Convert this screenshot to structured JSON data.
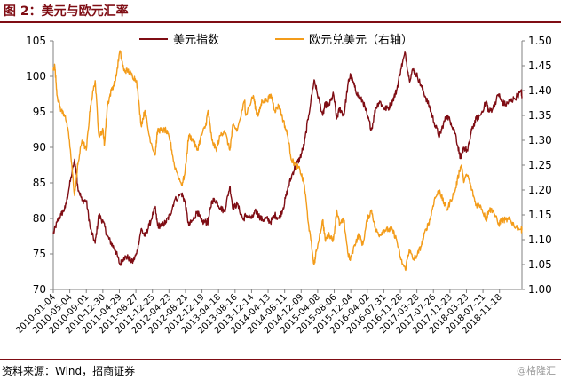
{
  "header": {
    "title": "图 2：美元与欧元汇率"
  },
  "footer": {
    "source": "资料来源：Wind，招商证券",
    "watermark": "@格隆汇"
  },
  "colors": {
    "title": "#7f0d14",
    "usd_index": "#7f0d14",
    "eurusd": "#f39c1a",
    "axis": "#808080"
  },
  "chart_data": {
    "type": "line",
    "title": "",
    "legend_position": "top",
    "grid": false,
    "y_left": {
      "ylim": [
        70,
        105
      ],
      "ticks": [
        "70",
        "75",
        "80",
        "85",
        "90",
        "95",
        "100",
        "105"
      ]
    },
    "y_right": {
      "ylim": [
        1.0,
        1.5
      ],
      "ticks": [
        "1.00",
        "1.05",
        "1.10",
        "1.15",
        "1.20",
        "1.25",
        "1.30",
        "1.35",
        "1.40",
        "1.45",
        "1.50"
      ]
    },
    "x_range": [
      "2010-01-04",
      "2019-04-30"
    ],
    "x_ticks": [
      "2010-01-04",
      "2010-05-04",
      "2010-09-01",
      "2010-12-30",
      "2011-04-29",
      "2011-08-27",
      "2011-12-25",
      "2012-04-23",
      "2012-08-21",
      "2012-12-19",
      "2013-04-18",
      "2013-08-16",
      "2013-12-14",
      "2014-04-13",
      "2014-08-11",
      "2014-12-09",
      "2015-04-08",
      "2015-08-06",
      "2015-12-04",
      "2016-04-02",
      "2016-07-31",
      "2016-11-28",
      "2017-03-28",
      "2017-07-26",
      "2017-11-23",
      "2018-03-23",
      "2018-07-21",
      "2018-11-18"
    ],
    "series": [
      {
        "name": "美元指数",
        "axis": "left",
        "color": "#7f0d14",
        "points": [
          [
            "2010-01-04",
            77.8
          ],
          [
            "2010-02-01",
            79.5
          ],
          [
            "2010-03-01",
            80.5
          ],
          [
            "2010-04-01",
            81.5
          ],
          [
            "2010-05-01",
            84.5
          ],
          [
            "2010-06-07",
            88.2
          ],
          [
            "2010-06-20",
            86.5
          ],
          [
            "2010-07-01",
            84.5
          ],
          [
            "2010-08-01",
            82.5
          ],
          [
            "2010-09-01",
            82.5
          ],
          [
            "2010-10-01",
            78.5
          ],
          [
            "2010-11-04",
            76.5
          ],
          [
            "2010-12-01",
            80.5
          ],
          [
            "2011-01-01",
            79.5
          ],
          [
            "2011-02-01",
            77.5
          ],
          [
            "2011-03-01",
            76.5
          ],
          [
            "2011-04-01",
            75.5
          ],
          [
            "2011-05-03",
            73.5
          ],
          [
            "2011-06-01",
            74.5
          ],
          [
            "2011-07-01",
            74.5
          ],
          [
            "2011-08-01",
            73.8
          ],
          [
            "2011-09-01",
            75.0
          ],
          [
            "2011-10-04",
            78.5
          ],
          [
            "2011-11-01",
            77.5
          ],
          [
            "2011-12-01",
            79.0
          ],
          [
            "2012-01-13",
            81.5
          ],
          [
            "2012-02-01",
            79.0
          ],
          [
            "2012-03-01",
            79.0
          ],
          [
            "2012-04-01",
            79.5
          ],
          [
            "2012-05-01",
            80.5
          ],
          [
            "2012-06-01",
            82.5
          ],
          [
            "2012-07-24",
            83.5
          ],
          [
            "2012-08-15",
            82.5
          ],
          [
            "2012-09-14",
            79.0
          ],
          [
            "2012-10-15",
            79.8
          ],
          [
            "2012-11-15",
            81.0
          ],
          [
            "2012-12-15",
            79.5
          ],
          [
            "2013-01-15",
            79.5
          ],
          [
            "2013-02-01",
            79.5
          ],
          [
            "2013-03-01",
            82.5
          ],
          [
            "2013-04-01",
            82.5
          ],
          [
            "2013-05-01",
            81.5
          ],
          [
            "2013-06-01",
            81.0
          ],
          [
            "2013-07-09",
            84.5
          ],
          [
            "2013-08-01",
            81.5
          ],
          [
            "2013-09-01",
            82.0
          ],
          [
            "2013-10-15",
            79.8
          ],
          [
            "2013-11-01",
            80.5
          ],
          [
            "2013-12-15",
            80.0
          ],
          [
            "2014-01-15",
            81.0
          ],
          [
            "2014-02-01",
            80.5
          ],
          [
            "2014-03-01",
            79.8
          ],
          [
            "2014-04-01",
            80.0
          ],
          [
            "2014-05-01",
            79.5
          ],
          [
            "2014-06-01",
            80.5
          ],
          [
            "2014-07-01",
            80.0
          ],
          [
            "2014-08-01",
            81.5
          ],
          [
            "2014-09-01",
            84.0
          ],
          [
            "2014-10-01",
            86.0
          ],
          [
            "2014-11-01",
            87.5
          ],
          [
            "2014-12-01",
            88.5
          ],
          [
            "2015-01-01",
            90.5
          ],
          [
            "2015-02-01",
            94.5
          ],
          [
            "2015-03-13",
            99.5
          ],
          [
            "2015-04-01",
            98.0
          ],
          [
            "2015-05-15",
            94.5
          ],
          [
            "2015-06-01",
            96.0
          ],
          [
            "2015-07-01",
            96.0
          ],
          [
            "2015-08-01",
            97.5
          ],
          [
            "2015-08-24",
            94.0
          ],
          [
            "2015-09-15",
            95.5
          ],
          [
            "2015-10-15",
            94.5
          ],
          [
            "2015-11-15",
            99.0
          ],
          [
            "2015-12-02",
            100.2
          ],
          [
            "2016-01-01",
            98.5
          ],
          [
            "2016-02-01",
            97.0
          ],
          [
            "2016-03-01",
            96.5
          ],
          [
            "2016-04-01",
            94.5
          ],
          [
            "2016-05-03",
            92.5
          ],
          [
            "2016-06-01",
            95.5
          ],
          [
            "2016-07-01",
            96.5
          ],
          [
            "2016-08-01",
            95.5
          ],
          [
            "2016-09-01",
            95.5
          ],
          [
            "2016-10-01",
            96.5
          ],
          [
            "2016-11-01",
            98.0
          ],
          [
            "2016-12-01",
            101.0
          ],
          [
            "2017-01-03",
            103.3
          ],
          [
            "2017-02-01",
            99.5
          ],
          [
            "2017-03-01",
            101.0
          ],
          [
            "2017-04-01",
            100.0
          ],
          [
            "2017-05-01",
            98.5
          ],
          [
            "2017-06-01",
            97.0
          ],
          [
            "2017-07-01",
            95.5
          ],
          [
            "2017-08-01",
            93.5
          ],
          [
            "2017-09-08",
            91.5
          ],
          [
            "2017-10-01",
            93.0
          ],
          [
            "2017-11-01",
            94.5
          ],
          [
            "2017-12-01",
            93.5
          ],
          [
            "2018-01-01",
            92.0
          ],
          [
            "2018-02-01",
            89.0
          ],
          [
            "2018-02-15",
            88.5
          ],
          [
            "2018-03-01",
            90.0
          ],
          [
            "2018-04-01",
            89.5
          ],
          [
            "2018-05-01",
            92.5
          ],
          [
            "2018-06-01",
            94.0
          ],
          [
            "2018-07-01",
            94.5
          ],
          [
            "2018-08-15",
            96.5
          ],
          [
            "2018-09-01",
            95.0
          ],
          [
            "2018-10-01",
            95.5
          ],
          [
            "2018-11-12",
            97.5
          ],
          [
            "2018-12-01",
            96.5
          ],
          [
            "2019-01-01",
            96.0
          ],
          [
            "2019-02-01",
            96.5
          ],
          [
            "2019-03-01",
            96.8
          ],
          [
            "2019-04-25",
            97.8
          ],
          [
            "2019-04-30",
            97.2
          ]
        ]
      },
      {
        "name": "欧元兑美元（右轴）",
        "axis": "right",
        "color": "#f39c1a",
        "points": [
          [
            "2010-01-04",
            1.44
          ],
          [
            "2010-01-15",
            1.45
          ],
          [
            "2010-02-01",
            1.39
          ],
          [
            "2010-03-01",
            1.36
          ],
          [
            "2010-04-01",
            1.35
          ],
          [
            "2010-05-01",
            1.3
          ],
          [
            "2010-06-07",
            1.19
          ],
          [
            "2010-06-20",
            1.22
          ],
          [
            "2010-07-01",
            1.25
          ],
          [
            "2010-08-01",
            1.3
          ],
          [
            "2010-09-01",
            1.28
          ],
          [
            "2010-10-01",
            1.37
          ],
          [
            "2010-11-04",
            1.42
          ],
          [
            "2010-12-01",
            1.31
          ],
          [
            "2011-01-01",
            1.32
          ],
          [
            "2011-01-10",
            1.29
          ],
          [
            "2011-02-01",
            1.37
          ],
          [
            "2011-03-01",
            1.4
          ],
          [
            "2011-04-01",
            1.42
          ],
          [
            "2011-05-03",
            1.48
          ],
          [
            "2011-06-01",
            1.44
          ],
          [
            "2011-07-01",
            1.44
          ],
          [
            "2011-08-01",
            1.43
          ],
          [
            "2011-09-01",
            1.42
          ],
          [
            "2011-10-04",
            1.33
          ],
          [
            "2011-11-01",
            1.36
          ],
          [
            "2011-12-01",
            1.31
          ],
          [
            "2012-01-13",
            1.27
          ],
          [
            "2012-02-01",
            1.32
          ],
          [
            "2012-03-01",
            1.32
          ],
          [
            "2012-04-01",
            1.32
          ],
          [
            "2012-05-01",
            1.3
          ],
          [
            "2012-06-01",
            1.25
          ],
          [
            "2012-07-24",
            1.21
          ],
          [
            "2012-08-15",
            1.23
          ],
          [
            "2012-09-14",
            1.31
          ],
          [
            "2012-10-15",
            1.3
          ],
          [
            "2012-11-15",
            1.28
          ],
          [
            "2012-12-15",
            1.31
          ],
          [
            "2013-01-15",
            1.33
          ],
          [
            "2013-02-01",
            1.36
          ],
          [
            "2013-03-01",
            1.3
          ],
          [
            "2013-04-01",
            1.28
          ],
          [
            "2013-05-01",
            1.31
          ],
          [
            "2013-06-01",
            1.32
          ],
          [
            "2013-07-09",
            1.28
          ],
          [
            "2013-08-01",
            1.33
          ],
          [
            "2013-09-01",
            1.32
          ],
          [
            "2013-10-25",
            1.38
          ],
          [
            "2013-11-01",
            1.35
          ],
          [
            "2013-12-27",
            1.39
          ],
          [
            "2014-01-15",
            1.36
          ],
          [
            "2014-02-01",
            1.35
          ],
          [
            "2014-03-01",
            1.38
          ],
          [
            "2014-04-01",
            1.38
          ],
          [
            "2014-05-06",
            1.39
          ],
          [
            "2014-06-01",
            1.36
          ],
          [
            "2014-07-01",
            1.37
          ],
          [
            "2014-08-01",
            1.34
          ],
          [
            "2014-09-01",
            1.31
          ],
          [
            "2014-10-01",
            1.26
          ],
          [
            "2014-11-01",
            1.25
          ],
          [
            "2014-12-01",
            1.24
          ],
          [
            "2015-01-01",
            1.21
          ],
          [
            "2015-02-01",
            1.13
          ],
          [
            "2015-03-13",
            1.05
          ],
          [
            "2015-04-01",
            1.08
          ],
          [
            "2015-05-15",
            1.14
          ],
          [
            "2015-06-01",
            1.1
          ],
          [
            "2015-07-01",
            1.11
          ],
          [
            "2015-08-01",
            1.1
          ],
          [
            "2015-08-24",
            1.16
          ],
          [
            "2015-09-15",
            1.13
          ],
          [
            "2015-10-15",
            1.14
          ],
          [
            "2015-11-15",
            1.07
          ],
          [
            "2015-12-02",
            1.06
          ],
          [
            "2016-01-01",
            1.09
          ],
          [
            "2016-02-01",
            1.11
          ],
          [
            "2016-03-01",
            1.09
          ],
          [
            "2016-04-01",
            1.14
          ],
          [
            "2016-05-03",
            1.16
          ],
          [
            "2016-06-01",
            1.12
          ],
          [
            "2016-07-01",
            1.11
          ],
          [
            "2016-08-01",
            1.12
          ],
          [
            "2016-09-01",
            1.12
          ],
          [
            "2016-10-01",
            1.12
          ],
          [
            "2016-11-01",
            1.1
          ],
          [
            "2016-12-01",
            1.06
          ],
          [
            "2017-01-03",
            1.04
          ],
          [
            "2017-02-01",
            1.08
          ],
          [
            "2017-03-01",
            1.06
          ],
          [
            "2017-04-01",
            1.07
          ],
          [
            "2017-05-01",
            1.09
          ],
          [
            "2017-06-01",
            1.12
          ],
          [
            "2017-07-01",
            1.14
          ],
          [
            "2017-08-01",
            1.18
          ],
          [
            "2017-09-08",
            1.2
          ],
          [
            "2017-10-01",
            1.18
          ],
          [
            "2017-11-01",
            1.16
          ],
          [
            "2017-12-01",
            1.18
          ],
          [
            "2018-01-01",
            1.2
          ],
          [
            "2018-02-01",
            1.24
          ],
          [
            "2018-02-15",
            1.25
          ],
          [
            "2018-03-01",
            1.22
          ],
          [
            "2018-04-01",
            1.23
          ],
          [
            "2018-05-01",
            1.2
          ],
          [
            "2018-06-01",
            1.17
          ],
          [
            "2018-07-01",
            1.17
          ],
          [
            "2018-08-15",
            1.14
          ],
          [
            "2018-09-01",
            1.16
          ],
          [
            "2018-10-01",
            1.16
          ],
          [
            "2018-11-12",
            1.13
          ],
          [
            "2018-12-01",
            1.14
          ],
          [
            "2019-01-01",
            1.14
          ],
          [
            "2019-02-01",
            1.14
          ],
          [
            "2019-03-01",
            1.13
          ],
          [
            "2019-04-25",
            1.12
          ],
          [
            "2019-04-30",
            1.12
          ]
        ]
      }
    ]
  }
}
